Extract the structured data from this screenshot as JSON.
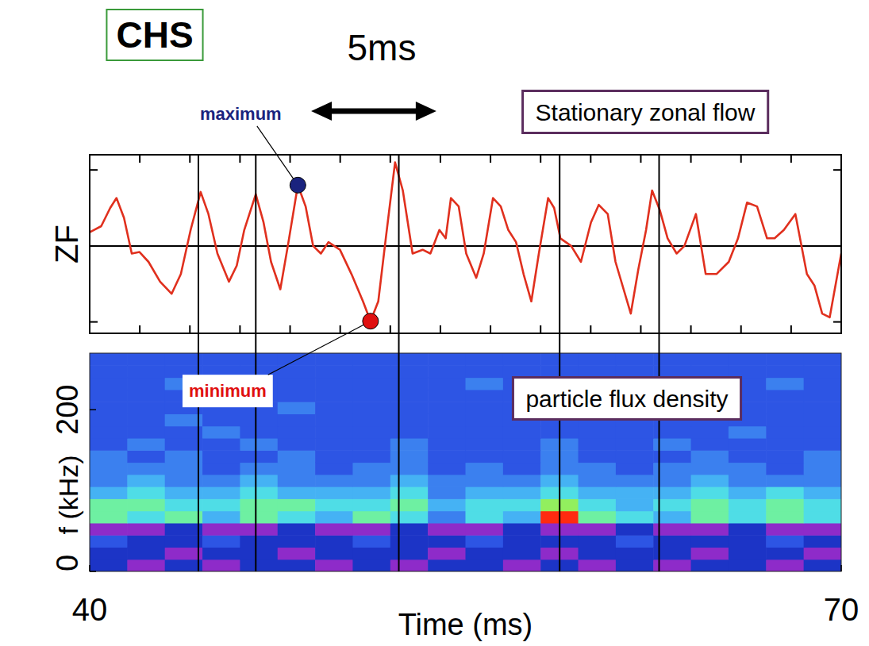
{
  "label": "CHS",
  "scale_bar": {
    "label": "5ms",
    "x": 48.84,
    "length": 5
  },
  "chart_data": [
    {
      "type": "line",
      "title": "Stationary zonal flow",
      "y_label": "ZF",
      "x": [
        40.0,
        40.46,
        40.82,
        41.07,
        41.37,
        41.68,
        41.99,
        42.35,
        42.81,
        43.27,
        43.64,
        44.03,
        44.43,
        44.74,
        45.1,
        45.56,
        45.87,
        46.17,
        46.63,
        46.94,
        47.24,
        47.61,
        47.91,
        48.31,
        48.62,
        48.92,
        49.23,
        49.53,
        49.99,
        50.45,
        50.91,
        51.21,
        51.52,
        51.82,
        52.19,
        52.5,
        52.89,
        53.29,
        53.6,
        53.96,
        54.21,
        54.42,
        54.73,
        55.03,
        55.43,
        55.73,
        56.1,
        56.41,
        56.71,
        57.02,
        57.32,
        57.63,
        57.93,
        58.3,
        58.54,
        58.79,
        59.22,
        59.61,
        60.01,
        60.32,
        60.68,
        60.99,
        61.6,
        61.9,
        62.21,
        62.45,
        62.76,
        63.07,
        63.43,
        63.74,
        64.2,
        64.59,
        65.02,
        65.51,
        65.88,
        66.24,
        66.64,
        67.04,
        67.34,
        67.71,
        68.17,
        68.63,
        68.93,
        69.24,
        69.54,
        70.0
      ],
      "series": [
        {
          "color": "#e0301e",
          "values": [
            0.18,
            0.26,
            0.5,
            0.63,
            0.37,
            -0.1,
            -0.08,
            -0.21,
            -0.47,
            -0.63,
            -0.37,
            0.21,
            0.71,
            0.42,
            -0.1,
            -0.47,
            -0.26,
            0.21,
            0.68,
            0.31,
            -0.21,
            -0.57,
            0,
            0.8,
            0.52,
            0,
            -0.1,
            0.05,
            -0.05,
            -0.37,
            -0.73,
            -0.99,
            -0.73,
            0.1,
            1.1,
            0.73,
            -0.1,
            -0.05,
            -0.1,
            0.21,
            0.1,
            0.63,
            0.52,
            -0.1,
            -0.42,
            -0.1,
            0.63,
            0.52,
            0.21,
            0.05,
            -0.37,
            -0.73,
            -0.1,
            0.63,
            0.5,
            0.1,
            0,
            -0.21,
            0.31,
            0.54,
            0.42,
            -0.21,
            -0.89,
            -0.31,
            0.21,
            0.73,
            0.47,
            0.1,
            -0.1,
            0,
            0.42,
            -0.37,
            -0.37,
            -0.21,
            0.1,
            0.57,
            0.52,
            0.1,
            0.1,
            0.21,
            0.42,
            -0.37,
            -0.52,
            -0.89,
            -0.94,
            -0.1
          ]
        }
      ],
      "xlim": [
        40,
        70
      ],
      "xticks": [
        40,
        42,
        44,
        46,
        48,
        50,
        52,
        54,
        56,
        58,
        60,
        62,
        64,
        66,
        68,
        70
      ],
      "ylim": [
        -1.15,
        1.2
      ],
      "yticks": [
        -1,
        0,
        1
      ],
      "tick_labels": false,
      "vlines": [
        44.34,
        46.63,
        52.34,
        58.76,
        62.73
      ],
      "annotations": [
        {
          "text": "maximum",
          "x": 48.31,
          "y": 0.8,
          "color": "#1a237e"
        },
        {
          "text": "minimum",
          "x": 51.21,
          "y": -0.99,
          "color": "#e01010"
        }
      ]
    },
    {
      "type": "heatmap",
      "title": "particle flux density",
      "x_label": "Time (ms)",
      "y_label": "f (kHz)",
      "xlim": [
        40,
        70
      ],
      "xticks": [
        40,
        70
      ],
      "ylim": [
        0,
        270
      ],
      "yticks": [
        0,
        200
      ],
      "x_bins": [
        40,
        41.5,
        43,
        44.5,
        46,
        47.5,
        49,
        50.5,
        52,
        53.5,
        55,
        56.5,
        58,
        59.5,
        61,
        62.5,
        64,
        65.5,
        67,
        68.5,
        70
      ],
      "y_bins": [
        0,
        15,
        30,
        45,
        60,
        75,
        90,
        105,
        120,
        135,
        150,
        165,
        180,
        195,
        210,
        225,
        240,
        255,
        270
      ],
      "zlim": [
        0,
        9
      ],
      "cells": [
        [
          1,
          0,
          1,
          0,
          1,
          1,
          0,
          1,
          0,
          1,
          1,
          0,
          1,
          0,
          1,
          0,
          1,
          1,
          0,
          1
        ],
        [
          1,
          1,
          0,
          1,
          1,
          0,
          1,
          1,
          1,
          0,
          1,
          1,
          0,
          1,
          1,
          1,
          0,
          1,
          1,
          0
        ],
        [
          2,
          1,
          1,
          2,
          1,
          1,
          1,
          2,
          1,
          1,
          2,
          1,
          1,
          1,
          2,
          1,
          1,
          1,
          2,
          1
        ],
        [
          0,
          0,
          1,
          0,
          0,
          1,
          0,
          0,
          1,
          0,
          0,
          1,
          0,
          0,
          1,
          0,
          0,
          1,
          0,
          0
        ],
        [
          6,
          5,
          6,
          4,
          6,
          5,
          4,
          6,
          5,
          3,
          5,
          4,
          9,
          6,
          5,
          4,
          6,
          5,
          6,
          5
        ],
        [
          6,
          6,
          5,
          5,
          6,
          6,
          5,
          5,
          6,
          4,
          5,
          5,
          7,
          5,
          4,
          5,
          6,
          5,
          6,
          5
        ],
        [
          4,
          5,
          4,
          4,
          5,
          4,
          4,
          4,
          5,
          3,
          4,
          4,
          5,
          4,
          4,
          4,
          5,
          4,
          5,
          4
        ],
        [
          3,
          4,
          3,
          3,
          4,
          3,
          3,
          3,
          4,
          3,
          3,
          3,
          4,
          3,
          3,
          3,
          4,
          3,
          3,
          3
        ],
        [
          3,
          3,
          3,
          2,
          3,
          3,
          2,
          3,
          3,
          2,
          3,
          2,
          3,
          3,
          2,
          3,
          3,
          3,
          2,
          3
        ],
        [
          3,
          2,
          3,
          2,
          2,
          3,
          2,
          2,
          3,
          2,
          2,
          2,
          3,
          2,
          2,
          2,
          3,
          2,
          2,
          3
        ],
        [
          2,
          3,
          2,
          2,
          3,
          2,
          2,
          2,
          3,
          2,
          2,
          2,
          3,
          2,
          2,
          3,
          2,
          2,
          2,
          2
        ],
        [
          2,
          2,
          2,
          3,
          2,
          2,
          2,
          2,
          2,
          2,
          2,
          2,
          2,
          2,
          2,
          2,
          2,
          3,
          2,
          2
        ],
        [
          2,
          2,
          3,
          2,
          2,
          2,
          2,
          2,
          2,
          2,
          2,
          2,
          2,
          2,
          2,
          2,
          2,
          2,
          2,
          2
        ],
        [
          2,
          2,
          2,
          2,
          2,
          3,
          2,
          2,
          2,
          2,
          2,
          2,
          2,
          2,
          2,
          2,
          2,
          2,
          2,
          2
        ],
        [
          2,
          2,
          2,
          2,
          2,
          2,
          2,
          2,
          2,
          2,
          2,
          2,
          2,
          2,
          2,
          2,
          2,
          2,
          2,
          2
        ],
        [
          2,
          2,
          3,
          2,
          2,
          2,
          2,
          2,
          2,
          2,
          3,
          2,
          2,
          2,
          2,
          2,
          2,
          2,
          3,
          2
        ],
        [
          2,
          2,
          2,
          2,
          2,
          2,
          2,
          2,
          2,
          2,
          2,
          2,
          2,
          2,
          2,
          2,
          2,
          2,
          2,
          2
        ],
        [
          2,
          2,
          2,
          2,
          2,
          2,
          2,
          2,
          2,
          2,
          2,
          2,
          2,
          2,
          2,
          2,
          2,
          2,
          2,
          2
        ]
      ]
    }
  ]
}
